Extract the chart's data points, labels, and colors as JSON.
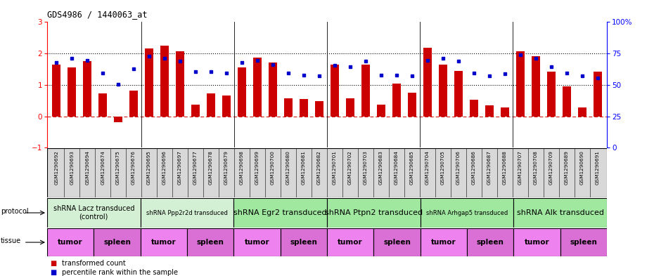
{
  "title": "GDS4986 / 1440063_at",
  "samples": [
    "GSM1290692",
    "GSM1290693",
    "GSM1290694",
    "GSM1290674",
    "GSM1290675",
    "GSM1290676",
    "GSM1290695",
    "GSM1290696",
    "GSM1290697",
    "GSM1290677",
    "GSM1290678",
    "GSM1290679",
    "GSM1290698",
    "GSM1290699",
    "GSM1290700",
    "GSM1290680",
    "GSM1290681",
    "GSM1290682",
    "GSM1290701",
    "GSM1290702",
    "GSM1290703",
    "GSM1290683",
    "GSM1290684",
    "GSM1290685",
    "GSM1290704",
    "GSM1290705",
    "GSM1290706",
    "GSM1290686",
    "GSM1290687",
    "GSM1290688",
    "GSM1290707",
    "GSM1290708",
    "GSM1290709",
    "GSM1290689",
    "GSM1290690",
    "GSM1290691"
  ],
  "bar_values": [
    1.65,
    1.55,
    1.75,
    0.72,
    -0.18,
    0.82,
    2.15,
    2.25,
    2.08,
    0.38,
    0.72,
    0.65,
    1.55,
    1.88,
    1.72,
    0.58,
    0.55,
    0.48,
    1.65,
    0.58,
    1.65,
    0.38,
    1.05,
    0.75,
    2.18,
    1.65,
    1.45,
    0.52,
    0.35,
    0.28,
    2.08,
    1.92,
    1.42,
    0.95,
    0.28,
    1.42
  ],
  "blue_values": [
    1.72,
    1.85,
    1.78,
    1.38,
    1.02,
    1.52,
    1.92,
    1.85,
    1.75,
    1.42,
    1.42,
    1.38,
    1.72,
    1.78,
    1.65,
    1.38,
    1.32,
    1.28,
    1.62,
    1.58,
    1.75,
    1.32,
    1.32,
    1.28,
    1.78,
    1.85,
    1.75,
    1.38,
    1.28,
    1.35,
    1.95,
    1.85,
    1.58,
    1.38,
    1.28,
    1.22
  ],
  "protocols": [
    {
      "label": "shRNA Lacz transduced\n(control)",
      "start": 0,
      "end": 6,
      "color": "#d4f0d4",
      "fontsize": 7
    },
    {
      "label": "shRNA Ppp2r2d transduced",
      "start": 6,
      "end": 12,
      "color": "#d4f0d4",
      "fontsize": 6
    },
    {
      "label": "shRNA Egr2 transduced",
      "start": 12,
      "end": 18,
      "color": "#a0e8a0",
      "fontsize": 8
    },
    {
      "label": "shRNA Ptpn2 transduced",
      "start": 18,
      "end": 24,
      "color": "#a0e8a0",
      "fontsize": 8
    },
    {
      "label": "shRNA Arhgap5 transduced",
      "start": 24,
      "end": 30,
      "color": "#a0e8a0",
      "fontsize": 6
    },
    {
      "label": "shRNA Alk transduced",
      "start": 30,
      "end": 36,
      "color": "#a0e8a0",
      "fontsize": 8
    }
  ],
  "tissues": [
    {
      "label": "tumor",
      "start": 0,
      "end": 3,
      "color": "#ee82ee"
    },
    {
      "label": "spleen",
      "start": 3,
      "end": 6,
      "color": "#da70d6"
    },
    {
      "label": "tumor",
      "start": 6,
      "end": 9,
      "color": "#ee82ee"
    },
    {
      "label": "spleen",
      "start": 9,
      "end": 12,
      "color": "#da70d6"
    },
    {
      "label": "tumor",
      "start": 12,
      "end": 15,
      "color": "#ee82ee"
    },
    {
      "label": "spleen",
      "start": 15,
      "end": 18,
      "color": "#da70d6"
    },
    {
      "label": "tumor",
      "start": 18,
      "end": 21,
      "color": "#ee82ee"
    },
    {
      "label": "spleen",
      "start": 21,
      "end": 24,
      "color": "#da70d6"
    },
    {
      "label": "tumor",
      "start": 24,
      "end": 27,
      "color": "#ee82ee"
    },
    {
      "label": "spleen",
      "start": 27,
      "end": 30,
      "color": "#da70d6"
    },
    {
      "label": "tumor",
      "start": 30,
      "end": 33,
      "color": "#ee82ee"
    },
    {
      "label": "spleen",
      "start": 33,
      "end": 36,
      "color": "#da70d6"
    }
  ],
  "ylim": [
    -1,
    3
  ],
  "yticks_left": [
    -1,
    0,
    1,
    2,
    3
  ],
  "yticks_right_labels": [
    "0",
    "25",
    "50",
    "75",
    "100%"
  ],
  "bar_color": "#cc0000",
  "dot_color": "#0000cc",
  "hline_color": "#cc0000",
  "dotted_line_color": "#000000",
  "dotted_lines": [
    1,
    2
  ],
  "sample_box_color": "#d8d8d8",
  "background_color": "#ffffff"
}
